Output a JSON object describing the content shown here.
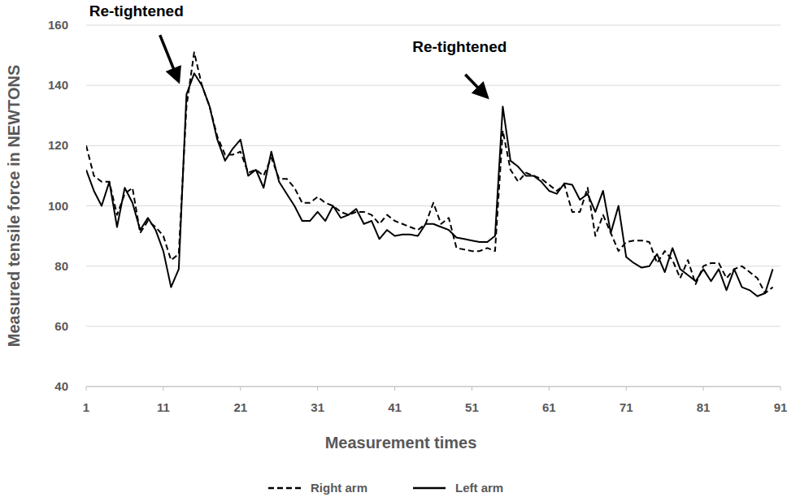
{
  "chart_data": {
    "type": "line",
    "x_label": "Measurement times",
    "y_label": "Measured tensile force in NEWTONS",
    "x": [
      1,
      2,
      3,
      4,
      5,
      6,
      7,
      8,
      9,
      10,
      11,
      12,
      13,
      14,
      15,
      16,
      17,
      18,
      19,
      20,
      21,
      22,
      23,
      24,
      25,
      26,
      27,
      28,
      29,
      30,
      31,
      32,
      33,
      34,
      35,
      36,
      37,
      38,
      39,
      40,
      41,
      42,
      43,
      44,
      45,
      46,
      47,
      48,
      49,
      50,
      51,
      52,
      53,
      54,
      55,
      56,
      57,
      58,
      59,
      60,
      61,
      62,
      63,
      64,
      65,
      66,
      67,
      68,
      69,
      70,
      71,
      72,
      73,
      74,
      75,
      76,
      77,
      78,
      79,
      80,
      81,
      82,
      83,
      84,
      85,
      86,
      87,
      88,
      89,
      90
    ],
    "series": [
      {
        "name": "Right arm",
        "color": "#000000",
        "line_style": "dashed",
        "values": [
          120,
          110,
          108,
          108,
          97,
          104,
          106,
          91,
          95,
          93,
          90,
          82,
          84,
          133,
          151,
          140,
          133,
          123,
          117,
          117,
          118,
          111,
          112,
          110,
          116,
          109,
          109,
          106,
          101,
          101,
          103,
          101,
          100,
          98,
          97,
          98,
          98,
          97,
          94,
          97,
          95,
          94,
          93,
          92,
          94,
          101,
          94,
          96,
          86,
          85.5,
          85,
          85,
          86,
          85,
          125,
          112,
          108,
          111,
          110,
          109,
          107,
          105,
          107,
          98,
          98,
          106,
          90,
          97,
          91,
          85,
          88,
          88.5,
          88.5,
          88,
          81,
          85,
          82,
          76,
          82,
          74,
          80,
          81,
          81,
          76,
          79,
          80,
          78,
          76,
          71,
          73
        ]
      },
      {
        "name": "Left arm",
        "color": "#000000",
        "line_style": "solid",
        "values": [
          112,
          105,
          100,
          108,
          93,
          106,
          101,
          92,
          96,
          92,
          85,
          73,
          79,
          137,
          144,
          140,
          133,
          122,
          115,
          119,
          122,
          110,
          112,
          106,
          118,
          108,
          104,
          100,
          95,
          95,
          98,
          95,
          100,
          96,
          97,
          99,
          94,
          95,
          89,
          92,
          90,
          90.5,
          90.5,
          90,
          94,
          94,
          93,
          92,
          89.5,
          89,
          88.5,
          88,
          88,
          90,
          133,
          115,
          113,
          110,
          110,
          108,
          105,
          104,
          107.5,
          107,
          102,
          104,
          98,
          105,
          91,
          100,
          83,
          81,
          79.5,
          80,
          84,
          78,
          86,
          79,
          77,
          75,
          79,
          75,
          79,
          72,
          79,
          73,
          72,
          70,
          71,
          79
        ]
      }
    ],
    "xlim": [
      1,
      91
    ],
    "xticks": [
      1,
      11,
      21,
      31,
      41,
      51,
      61,
      71,
      81,
      91
    ],
    "ylim": [
      40,
      160
    ],
    "yticks": [
      40,
      60,
      80,
      100,
      120,
      140,
      160
    ],
    "grid": true,
    "legend": "bottom",
    "annotations": [
      {
        "text": "Re-tightened",
        "x": 13.3,
        "y": 140
      },
      {
        "text": "Re-tightened",
        "x": 53.3,
        "y": 134.7
      }
    ]
  }
}
